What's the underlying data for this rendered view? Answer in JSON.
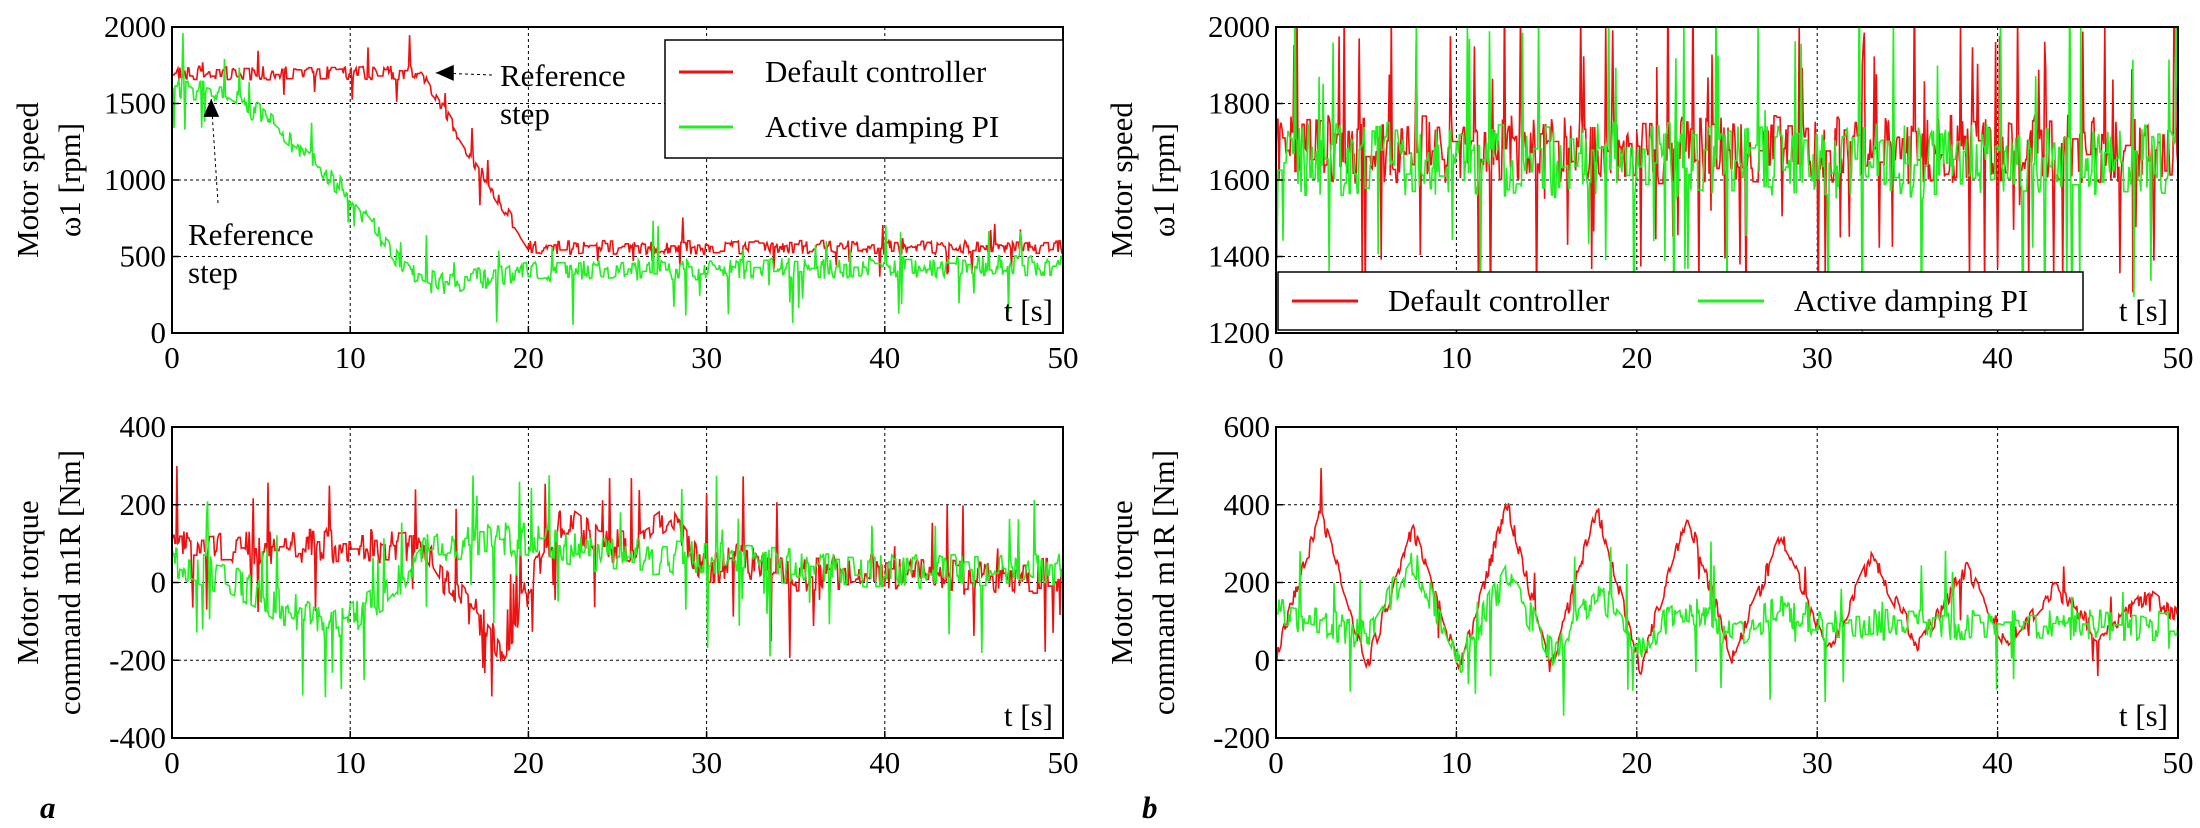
{
  "chart_data": [
    {
      "id": "a_speed",
      "type": "line",
      "panel": "a",
      "ylabel_lines": [
        "Motor speed",
        "ω1 [rpm]"
      ],
      "x_axis_label": "t [s]",
      "xlim": [
        0,
        50
      ],
      "ylim": [
        0,
        2000
      ],
      "xticks": [
        0,
        10,
        20,
        30,
        40,
        50
      ],
      "yticks": [
        0,
        500,
        1000,
        1500,
        2000
      ],
      "grid": true,
      "legend_placement": "top-right",
      "annotations": [
        {
          "text_lines": [
            "Reference",
            "step"
          ],
          "target": [
            14.8,
            1700
          ]
        },
        {
          "text_lines": [
            "Reference",
            "step"
          ],
          "target": [
            2.2,
            1530
          ]
        }
      ],
      "series": [
        {
          "name": "Default controller",
          "color": "#ee1111",
          "noise": 45,
          "spikes": 0.03,
          "x": [
            0,
            14,
            16,
            20,
            50
          ],
          "y": [
            1700,
            1700,
            1300,
            560,
            560
          ]
        },
        {
          "name": "Active damping PI",
          "color": "#22ee22",
          "noise": 70,
          "spikes": 0.05,
          "x": [
            0,
            3,
            5,
            10,
            13,
            15,
            20,
            50
          ],
          "y": [
            1600,
            1580,
            1420,
            900,
            420,
            320,
            400,
            440
          ]
        }
      ]
    },
    {
      "id": "b_speed",
      "type": "line",
      "panel": "b",
      "ylabel_lines": [
        "Motor speed",
        "ω1 [rpm]"
      ],
      "x_axis_label": "t [s]",
      "xlim": [
        0,
        50
      ],
      "ylim": [
        1200,
        2000
      ],
      "xticks": [
        0,
        10,
        20,
        30,
        40,
        50
      ],
      "yticks": [
        1200,
        1400,
        1600,
        1800,
        2000
      ],
      "grid": true,
      "legend_placement": "bottom",
      "series": [
        {
          "name": "Default controller",
          "color": "#ee1111",
          "noise": 90,
          "spikes": 0.07,
          "x": [
            0,
            50
          ],
          "y": [
            1680,
            1680
          ]
        },
        {
          "name": "Active damping PI",
          "color": "#22ee22",
          "noise": 100,
          "spikes": 0.06,
          "x": [
            0,
            50
          ],
          "y": [
            1650,
            1650
          ]
        }
      ]
    },
    {
      "id": "a_torque",
      "type": "line",
      "panel": "a",
      "ylabel_lines": [
        "Motor torque",
        "command m1R [Nm]"
      ],
      "x_axis_label": "t [s]",
      "xlim": [
        0,
        50
      ],
      "ylim": [
        -400,
        400
      ],
      "xticks": [
        0,
        10,
        20,
        30,
        40,
        50
      ],
      "yticks": [
        -400,
        -200,
        0,
        200,
        400
      ],
      "grid": true,
      "series": [
        {
          "name": "Default controller",
          "color": "#ee1111",
          "noise": 45,
          "spikes": 0.05,
          "x": [
            0,
            14,
            15,
            17,
            18.5,
            20,
            22,
            24,
            26,
            28,
            30,
            32,
            35,
            40,
            45,
            50
          ],
          "y": [
            90,
            95,
            20,
            -80,
            -170,
            -20,
            170,
            100,
            90,
            160,
            30,
            60,
            20,
            30,
            10,
            20
          ]
        },
        {
          "name": "Active damping PI",
          "color": "#22ee22",
          "noise": 45,
          "spikes": 0.05,
          "x": [
            0,
            3,
            6,
            9,
            12,
            14,
            17,
            20,
            24,
            30,
            35,
            40,
            45,
            50
          ],
          "y": [
            60,
            10,
            -60,
            -120,
            -40,
            80,
            110,
            110,
            70,
            60,
            40,
            30,
            30,
            30
          ]
        }
      ]
    },
    {
      "id": "b_torque",
      "type": "line",
      "panel": "b",
      "ylabel_lines": [
        "Motor torque",
        "command m1R [Nm]"
      ],
      "x_axis_label": "t [s]",
      "xlim": [
        0,
        50
      ],
      "ylim": [
        -200,
        600
      ],
      "xticks": [
        0,
        10,
        20,
        30,
        40,
        50
      ],
      "yticks": [
        -200,
        0,
        200,
        400,
        600
      ],
      "grid": true,
      "series": [
        {
          "name": "Default controller",
          "color": "#ee1111",
          "noise": 22,
          "spikes": 0.02,
          "x": [
            0,
            2.5,
            5,
            7.6,
            10.2,
            12.8,
            15.2,
            17.8,
            20.2,
            22.8,
            25.3,
            28.0,
            30.6,
            33.0,
            35.6,
            38.3,
            40.5,
            43.2,
            45.6,
            48.4,
            50
          ],
          "y": [
            10,
            380,
            -20,
            340,
            -20,
            400,
            -20,
            390,
            -20,
            370,
            10,
            320,
            20,
            270,
            40,
            240,
            40,
            190,
            60,
            170,
            110
          ]
        },
        {
          "name": "Active damping PI",
          "color": "#22ee22",
          "noise": 40,
          "spikes": 0.03,
          "x": [
            0,
            2.5,
            5,
            7.6,
            10.2,
            12.8,
            15.2,
            17.8,
            20.2,
            22.8,
            25.3,
            28.0,
            30.6,
            50
          ],
          "y": [
            120,
            100,
            60,
            260,
            0,
            220,
            20,
            170,
            40,
            140,
            60,
            130,
            90,
            90
          ]
        }
      ]
    }
  ],
  "panel_labels": {
    "a": "a",
    "b": "b"
  },
  "legend": {
    "a": {
      "items": [
        "Default controller",
        "Active damping PI"
      ]
    },
    "b": {
      "items": [
        "Default controller",
        "Active damping PI"
      ]
    }
  }
}
